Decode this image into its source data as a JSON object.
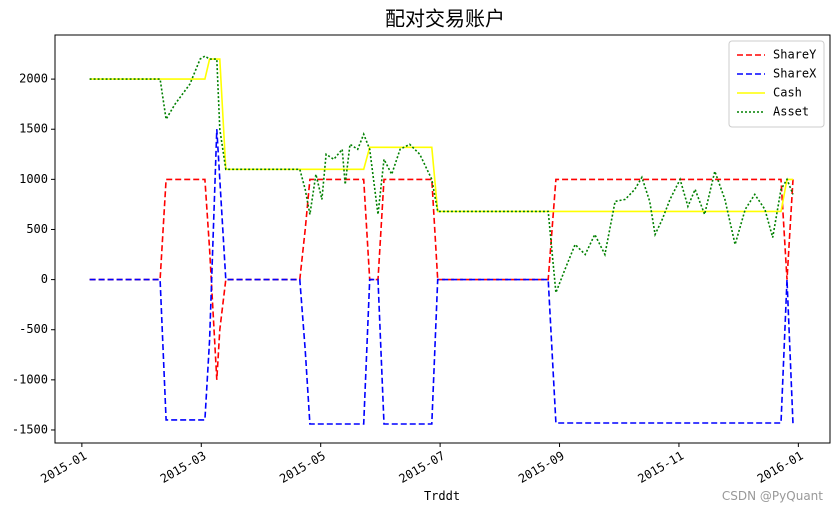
{
  "chart_data": {
    "type": "line",
    "title": "配对交易账户",
    "x_label": "Trddt",
    "watermark": "CSDN @PyQuant",
    "x": [
      0.13,
      1.31,
      1.41,
      1.56,
      1.81,
      1.98,
      2.06,
      2.14,
      2.26,
      2.31,
      2.41,
      3.65,
      3.74,
      3.82,
      3.92,
      4.02,
      4.09,
      4.22,
      4.36,
      4.41,
      4.49,
      4.62,
      4.72,
      4.82,
      4.96,
      5.06,
      5.19,
      5.33,
      5.49,
      5.66,
      5.86,
      5.96,
      7.81,
      7.94,
      8.09,
      8.26,
      8.43,
      8.59,
      8.76,
      8.93,
      9.1,
      9.26,
      9.38,
      9.51,
      9.6,
      9.72,
      9.85,
      10.02,
      10.15,
      10.27,
      10.43,
      10.6,
      10.77,
      10.94,
      11.11,
      11.27,
      11.44,
      11.57,
      11.71,
      11.81,
      11.91
    ],
    "series": [
      {
        "name": "ShareY",
        "color": "#ff0000",
        "linestyle": "dashed",
        "values": [
          0,
          0,
          1000,
          1000,
          1000,
          1000,
          1000,
          300,
          -1000,
          -500,
          0,
          0,
          500,
          1000,
          1000,
          1000,
          1000,
          1000,
          1000,
          1000,
          1000,
          1000,
          1000,
          0,
          0,
          1000,
          1000,
          1000,
          1000,
          1000,
          1000,
          0,
          0,
          1000,
          1000,
          1000,
          1000,
          1000,
          1000,
          1000,
          1000,
          1000,
          1000,
          1000,
          1000,
          1000,
          1000,
          1000,
          1000,
          1000,
          1000,
          1000,
          1000,
          1000,
          1000,
          1000,
          1000,
          1000,
          1000,
          0,
          1000
        ]
      },
      {
        "name": "ShareX",
        "color": "#0000ff",
        "linestyle": "dashed",
        "values": [
          0,
          0,
          -1400,
          -1400,
          -1400,
          -1400,
          -1400,
          -600,
          1500,
          1000,
          0,
          0,
          -700,
          -1440,
          -1440,
          -1440,
          -1440,
          -1440,
          -1440,
          -1440,
          -1440,
          -1440,
          -1440,
          0,
          0,
          -1440,
          -1440,
          -1440,
          -1440,
          -1440,
          -1440,
          0,
          0,
          -1430,
          -1430,
          -1430,
          -1430,
          -1430,
          -1430,
          -1430,
          -1430,
          -1430,
          -1430,
          -1430,
          -1430,
          -1430,
          -1430,
          -1430,
          -1430,
          -1430,
          -1430,
          -1430,
          -1430,
          -1430,
          -1430,
          -1430,
          -1430,
          -1430,
          -1430,
          0,
          -1440
        ]
      },
      {
        "name": "Cash",
        "color": "#ffff00",
        "linestyle": "solid",
        "values": [
          2000,
          2000,
          2000,
          2000,
          2000,
          2000,
          2000,
          2200,
          2200,
          2200,
          1100,
          1100,
          1100,
          1100,
          1100,
          1100,
          1100,
          1100,
          1100,
          1100,
          1100,
          1100,
          1100,
          1320,
          1320,
          1320,
          1320,
          1320,
          1320,
          1320,
          1320,
          680,
          680,
          680,
          680,
          680,
          680,
          680,
          680,
          680,
          680,
          680,
          680,
          680,
          680,
          680,
          680,
          680,
          680,
          680,
          680,
          680,
          680,
          680,
          680,
          680,
          680,
          680,
          680,
          1000,
          1000
        ]
      },
      {
        "name": "Asset",
        "color": "#008000",
        "linestyle": "dotted",
        "values": [
          2000,
          2000,
          1600,
          1750,
          1950,
          2200,
          2230,
          2200,
          2200,
          1500,
          1100,
          1100,
          900,
          650,
          1050,
          800,
          1250,
          1200,
          1300,
          950,
          1350,
          1300,
          1450,
          1300,
          650,
          1200,
          1050,
          1300,
          1350,
          1250,
          1000,
          680,
          680,
          -130,
          100,
          350,
          250,
          450,
          250,
          780,
          800,
          900,
          1020,
          780,
          450,
          600,
          800,
          1000,
          730,
          900,
          650,
          1080,
          800,
          350,
          700,
          850,
          700,
          420,
          900,
          1000,
          850
        ]
      }
    ],
    "xlim": [
      -0.45,
      12.53
    ],
    "xticks": [
      {
        "value": 0,
        "label": "2015-01"
      },
      {
        "value": 2,
        "label": "2015-03"
      },
      {
        "value": 4,
        "label": "2015-05"
      },
      {
        "value": 6,
        "label": "2015-07"
      },
      {
        "value": 8,
        "label": "2015-09"
      },
      {
        "value": 10,
        "label": "2015-11"
      },
      {
        "value": 12,
        "label": "2016-01"
      }
    ],
    "ylim": [
      -1630,
      2440
    ],
    "yticks": [
      -1500,
      -1000,
      -500,
      0,
      500,
      1000,
      1500,
      2000
    ],
    "legend": "upper right"
  }
}
